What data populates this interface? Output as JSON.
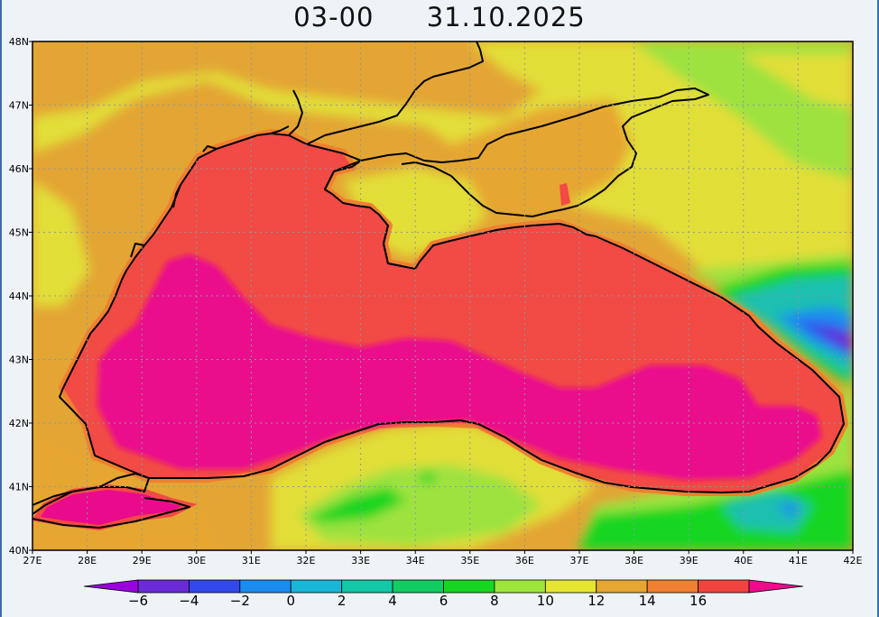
{
  "header": {
    "time_label": "03-00",
    "date_label": "31.10.2025"
  },
  "map": {
    "lat_ticks": [
      "48N",
      "47N",
      "46N",
      "45N",
      "44N",
      "43N",
      "42N",
      "41N",
      "40N"
    ],
    "lon_ticks": [
      "27E",
      "28E",
      "29E",
      "30E",
      "31E",
      "32E",
      "33E",
      "34E",
      "35E",
      "36E",
      "37E",
      "38E",
      "39E",
      "40E",
      "41E",
      "42E"
    ],
    "lat_range": [
      40,
      48
    ],
    "lon_range": [
      27,
      42
    ],
    "gridlines": true,
    "region": "Black Sea"
  },
  "colorbar": {
    "levels": [
      "-6",
      "-4",
      "-2",
      "0",
      "2",
      "4",
      "6",
      "8",
      "10",
      "12",
      "14",
      "16"
    ],
    "colors": [
      "#9b00dd",
      "#6a2bd6",
      "#3248ea",
      "#1a8cf0",
      "#1ab6d8",
      "#12c8a6",
      "#12cc62",
      "#18d620",
      "#9ee63c",
      "#e6e632",
      "#e6a632",
      "#f08030",
      "#f2443e",
      "#ee0c8c"
    ]
  },
  "palette": {
    "sea_warm": "#f24a45",
    "sea_core": "#ea0a8c",
    "land_orange": "#e3a534",
    "land_yellow": "#e2de38",
    "land_green": "#9ee23f",
    "land_teal": "#1abfb0",
    "outline": "#000000"
  }
}
